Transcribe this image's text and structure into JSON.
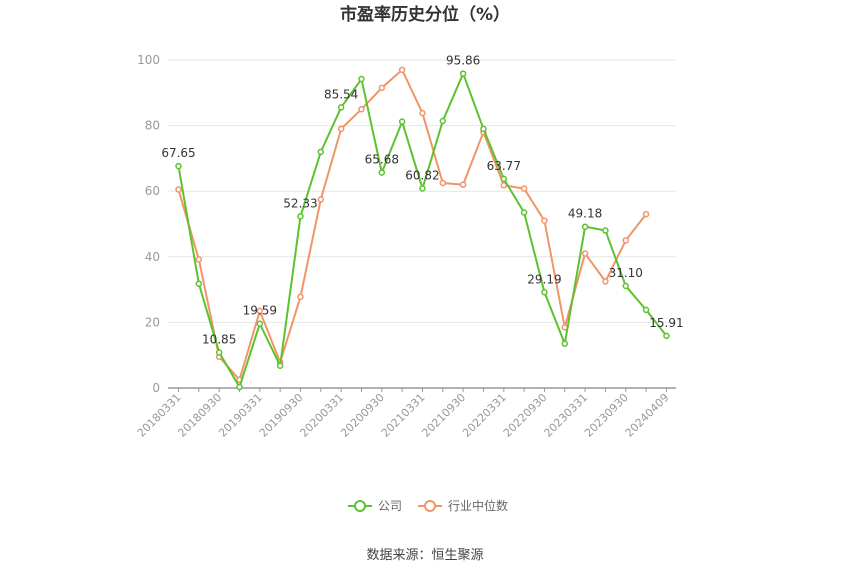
{
  "chart_data": {
    "type": "line",
    "title": "市盈率历史分位（%）",
    "ylim": [
      0,
      100
    ],
    "y_ticks": [
      0,
      20,
      40,
      60,
      80,
      100
    ],
    "grid": true,
    "legend_position": "bottom",
    "x": [
      "20180331",
      "20180630",
      "20180930",
      "20181231",
      "20190331",
      "20190630",
      "20190930",
      "20191231",
      "20200331",
      "20200630",
      "20200930",
      "20201231",
      "20210331",
      "20210630",
      "20210930",
      "20211231",
      "20220331",
      "20220630",
      "20220930",
      "20221231",
      "20230331",
      "20230630",
      "20230930",
      "20231231",
      "20240409"
    ],
    "x_tick_labels": [
      "20180331",
      "20180930",
      "20190331",
      "20190930",
      "20200331",
      "20200930",
      "20210331",
      "20210930",
      "20220331",
      "20220930",
      "20230331",
      "20230930",
      "20240409"
    ],
    "x_tick_indices": [
      0,
      2,
      4,
      6,
      8,
      10,
      12,
      14,
      16,
      18,
      20,
      22,
      24
    ],
    "series": [
      {
        "name": "公司",
        "color": "#5ec12f",
        "values": [
          67.65,
          31.8,
          10.85,
          0.3,
          19.59,
          6.8,
          52.33,
          72.0,
          85.54,
          94.2,
          65.68,
          81.2,
          60.82,
          81.4,
          95.86,
          79.0,
          63.77,
          53.5,
          29.19,
          13.5,
          49.18,
          48.0,
          31.1,
          23.8,
          15.91
        ],
        "labels": {
          "0": "67.65",
          "2": "10.85",
          "4": "19.59",
          "6": "52.33",
          "8": "85.54",
          "10": "65.68",
          "12": "60.82",
          "14": "95.86",
          "16": "63.77",
          "18": "29.19",
          "20": "49.18",
          "22": "31.10",
          "24": "15.91"
        }
      },
      {
        "name": "行业中位数",
        "color": "#f0956a",
        "values": [
          60.5,
          39.2,
          9.5,
          2.5,
          23.5,
          7.8,
          27.8,
          57.5,
          79.0,
          85.0,
          91.5,
          97.0,
          83.8,
          62.5,
          62.0,
          78.0,
          61.8,
          60.8,
          51.0,
          18.5,
          41.0,
          32.5,
          45.0,
          53.0,
          null
        ]
      }
    ]
  },
  "source": "数据来源：恒生聚源"
}
